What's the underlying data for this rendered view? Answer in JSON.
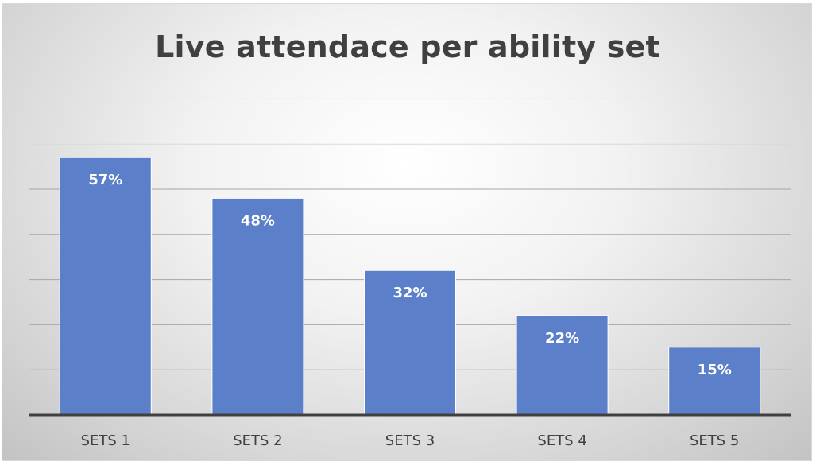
{
  "chart_data": {
    "type": "bar",
    "title": "Live attendace per ability set",
    "categories": [
      "SETS 1",
      "SETS 2",
      "SETS 3",
      "SETS 4",
      "SETS 5"
    ],
    "values": [
      57,
      48,
      32,
      22,
      15
    ],
    "data_labels": [
      "57%",
      "48%",
      "32%",
      "22%",
      "15%"
    ],
    "unit": "%",
    "ylim": [
      0,
      70
    ],
    "grid": true,
    "legend": "none",
    "bar_color": "#5b80c9",
    "axis_color": "#404040",
    "gridline_color": "#a6a6a6"
  }
}
